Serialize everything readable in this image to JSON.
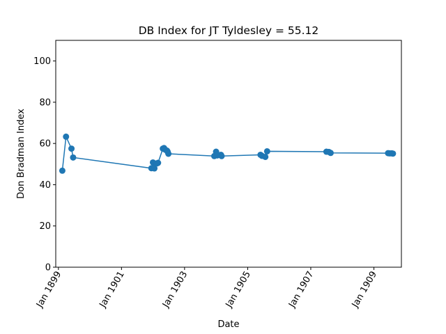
{
  "chart_data": {
    "type": "line",
    "title": "DB Index for JT Tyldesley = 55.12",
    "xlabel": "Date",
    "ylabel": "Don Bradman Index",
    "ylim": [
      0,
      110
    ],
    "yticks": [
      0,
      20,
      40,
      60,
      80,
      100
    ],
    "xlim": [
      "1898-12-01",
      "1909-11-15"
    ],
    "xticks": [
      {
        "date": "1899-01-01",
        "label": "Jan 1899"
      },
      {
        "date": "1901-01-01",
        "label": "Jan 1901"
      },
      {
        "date": "1903-01-01",
        "label": "Jan 1903"
      },
      {
        "date": "1905-01-01",
        "label": "Jan 1905"
      },
      {
        "date": "1907-01-01",
        "label": "Jan 1907"
      },
      {
        "date": "1909-01-01",
        "label": "Jan 1909"
      }
    ],
    "grid": false,
    "color": "#1f77b4",
    "series": [
      {
        "points": [
          {
            "x": "1899-02-15",
            "y": 46.8
          },
          {
            "x": "1899-03-30",
            "y": 63.3
          },
          {
            "x": "1899-06-01",
            "y": 57.5
          },
          {
            "x": "1899-06-20",
            "y": 53.2
          },
          {
            "x": "1901-12-13",
            "y": 48.0
          },
          {
            "x": "1901-12-31",
            "y": 50.8
          },
          {
            "x": "1902-01-02",
            "y": 48.2
          },
          {
            "x": "1902-01-17",
            "y": 47.9
          },
          {
            "x": "1902-02-14",
            "y": 50.3
          },
          {
            "x": "1902-02-28",
            "y": 50.6
          },
          {
            "x": "1902-04-25",
            "y": 57.5
          },
          {
            "x": "1902-05-08",
            "y": 57.8
          },
          {
            "x": "1902-05-22",
            "y": 57.0
          },
          {
            "x": "1902-06-12",
            "y": 56.5
          },
          {
            "x": "1902-06-20",
            "y": 55.9
          },
          {
            "x": "1902-06-28",
            "y": 55.0
          },
          {
            "x": "1903-12-11",
            "y": 53.9
          },
          {
            "x": "1904-01-01",
            "y": 56.0
          },
          {
            "x": "1904-01-15",
            "y": 54.2
          },
          {
            "x": "1904-02-26",
            "y": 54.5
          },
          {
            "x": "1904-03-05",
            "y": 53.9
          },
          {
            "x": "1905-05-29",
            "y": 54.5
          },
          {
            "x": "1905-06-15",
            "y": 54.0
          },
          {
            "x": "1905-07-24",
            "y": 53.5
          },
          {
            "x": "1905-08-14",
            "y": 56.2
          },
          {
            "x": "1907-07-01",
            "y": 56.0
          },
          {
            "x": "1907-07-29",
            "y": 55.9
          },
          {
            "x": "1907-08-19",
            "y": 55.4
          },
          {
            "x": "1909-06-14",
            "y": 55.3
          },
          {
            "x": "1909-07-01",
            "y": 55.2
          },
          {
            "x": "1909-07-26",
            "y": 55.2
          },
          {
            "x": "1909-08-09",
            "y": 55.1
          }
        ]
      }
    ]
  }
}
